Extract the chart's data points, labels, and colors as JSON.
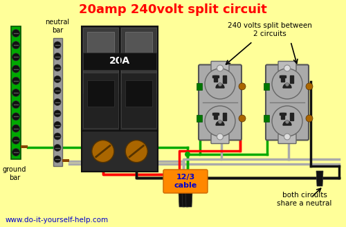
{
  "title": "20amp 240volt split circuit",
  "title_color": "#ff0000",
  "bg_color": "#ffff99",
  "website": "www.do-it-yourself-help.com",
  "website_color": "#0000cc",
  "label_neutral_bar": "neutral\nbar",
  "label_ground_bar": "ground\nbar",
  "label_cable": "12/3\ncable",
  "label_cable_color": "#0000cc",
  "label_240v": "240 volts split between\n2 circuits",
  "label_both": "both circuits\nshare a neutral",
  "label_20A": "20A",
  "wire_red": "#ff0000",
  "wire_black": "#111111",
  "wire_white": "#aaaaaa",
  "wire_green": "#00aa00",
  "outlet_gray": "#aaaaaa",
  "breaker_body": "#333333",
  "breaker_screw": "#aa6600",
  "neutral_bar_body": "#999999",
  "ground_bar_body": "#00aa00",
  "cable_bg": "#ff8800",
  "outlet_face": "#bbbbbb",
  "outlet_slot": "#222222",
  "outlet_screw_face": "#cccccc"
}
